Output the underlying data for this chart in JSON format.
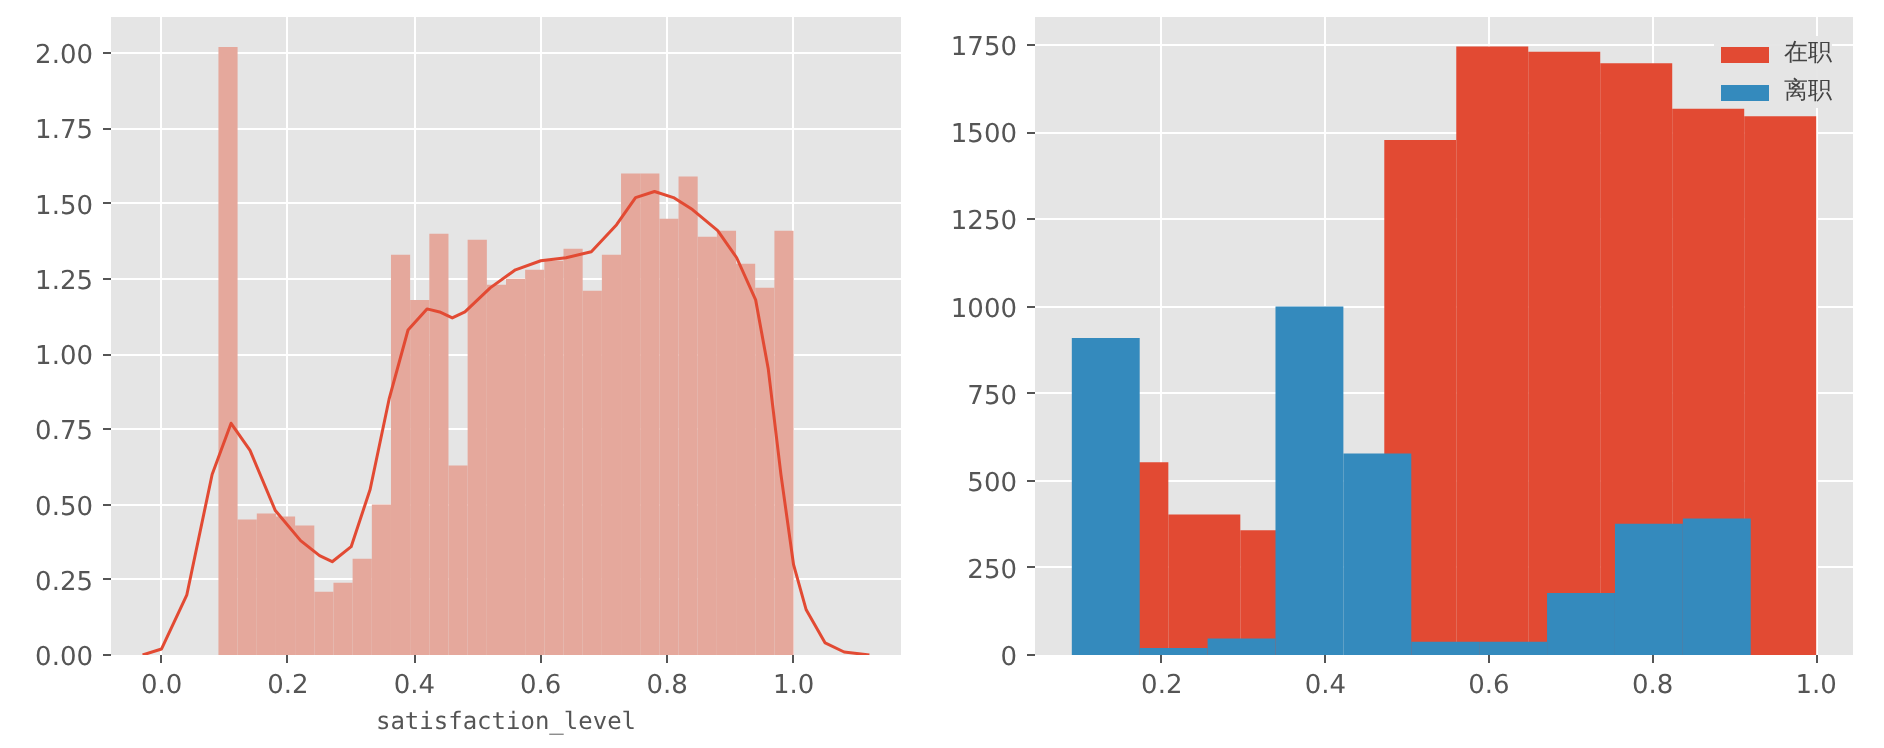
{
  "chart_data": [
    {
      "type": "histogram",
      "xlabel": "satisfaction_level",
      "xlim": [
        -0.08,
        1.17
      ],
      "ylim": [
        0,
        2.12
      ],
      "xticks": [
        {
          "value": 0,
          "label": "0.0"
        },
        {
          "value": 0.2,
          "label": "0.2"
        },
        {
          "value": 0.4,
          "label": "0.4"
        },
        {
          "value": 0.6,
          "label": "0.6"
        },
        {
          "value": 0.8,
          "label": "0.8"
        },
        {
          "value": 1,
          "label": "1.0"
        }
      ],
      "yticks": [
        {
          "value": 0,
          "label": "0.00"
        },
        {
          "value": 0.25,
          "label": "0.25"
        },
        {
          "value": 0.5,
          "label": "0.50"
        },
        {
          "value": 0.75,
          "label": "0.75"
        },
        {
          "value": 1,
          "label": "1.00"
        },
        {
          "value": 1.25,
          "label": "1.25"
        },
        {
          "value": 1.5,
          "label": "1.50"
        },
        {
          "value": 1.75,
          "label": "1.75"
        },
        {
          "value": 2,
          "label": "2.00"
        }
      ],
      "grid": true,
      "legend": false,
      "series": [
        {
          "color": "#e5a89c",
          "bins": [
            0.09,
            0.1203,
            0.1507,
            0.181,
            0.2113,
            0.2417,
            0.272,
            0.3023,
            0.3327,
            0.363,
            0.3933,
            0.4237,
            0.454,
            0.4843,
            0.5147,
            0.545,
            0.5753,
            0.6057,
            0.636,
            0.6663,
            0.6967,
            0.727,
            0.7573,
            0.7877,
            0.818,
            0.8483,
            0.8787,
            0.909,
            0.9393,
            0.9697,
            1.0
          ],
          "values": [
            2.02,
            0.45,
            0.47,
            0.46,
            0.43,
            0.21,
            0.24,
            0.32,
            0.5,
            1.33,
            1.18,
            1.4,
            0.63,
            1.38,
            1.23,
            1.25,
            1.28,
            1.31,
            1.35,
            1.21,
            1.33,
            1.6,
            1.6,
            1.45,
            1.59,
            1.39,
            1.41,
            1.3,
            1.22,
            1.41
          ]
        },
        {
          "type": "line",
          "color": "#e24a33",
          "x": [
            -0.03,
            0.0,
            0.04,
            0.08,
            0.11,
            0.14,
            0.18,
            0.22,
            0.25,
            0.27,
            0.3,
            0.33,
            0.36,
            0.39,
            0.42,
            0.44,
            0.46,
            0.48,
            0.52,
            0.56,
            0.6,
            0.64,
            0.68,
            0.72,
            0.75,
            0.78,
            0.81,
            0.84,
            0.88,
            0.91,
            0.94,
            0.96,
            0.98,
            1.0,
            1.02,
            1.05,
            1.08,
            1.12
          ],
          "values": [
            0,
            0.02,
            0.2,
            0.6,
            0.77,
            0.68,
            0.48,
            0.38,
            0.33,
            0.31,
            0.36,
            0.55,
            0.85,
            1.08,
            1.15,
            1.14,
            1.12,
            1.14,
            1.22,
            1.28,
            1.31,
            1.32,
            1.34,
            1.43,
            1.52,
            1.54,
            1.52,
            1.48,
            1.41,
            1.32,
            1.18,
            0.95,
            0.6,
            0.3,
            0.15,
            0.04,
            0.01,
            0
          ]
        }
      ]
    },
    {
      "type": "bar",
      "xlim": [
        0.045,
        1.045
      ],
      "ylim": [
        0,
        1831
      ],
      "xticks": [
        {
          "value": 0.2,
          "label": "0.2"
        },
        {
          "value": 0.4,
          "label": "0.4"
        },
        {
          "value": 0.6,
          "label": "0.6"
        },
        {
          "value": 0.8,
          "label": "0.8"
        },
        {
          "value": 1,
          "label": "1.0"
        }
      ],
      "yticks": [
        0,
        250,
        500,
        750,
        1000,
        1250,
        1500,
        1750
      ],
      "grid": true,
      "legend": "top right",
      "series": [
        {
          "name": "在职",
          "color": "#e24a33",
          "x": [
            0.164,
            0.252,
            0.34,
            0.428,
            0.516,
            0.604,
            0.692,
            0.78,
            0.868,
            0.956
          ],
          "values": [
            553,
            403,
            358,
            null,
            1478,
            1746,
            1731,
            1698,
            1568,
            1546
          ]
        },
        {
          "name": "离职",
          "color": "#348abd",
          "x": [
            0.1315,
            0.2145,
            0.2975,
            0.3805,
            0.4635,
            0.5465,
            0.6295,
            0.7125,
            0.7955,
            0.8785
          ],
          "values": [
            910,
            20,
            47,
            1000,
            578,
            38,
            38,
            178,
            377,
            392
          ]
        }
      ]
    }
  ]
}
